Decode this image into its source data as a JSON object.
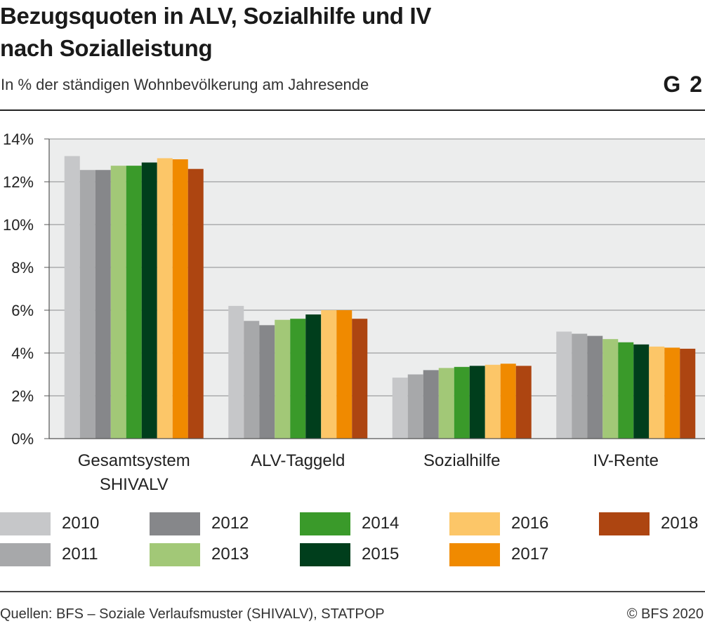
{
  "header": {
    "title": "Bezugsquoten in ALV, Sozialhilfe und IV nach Sozialleistung",
    "subtitle": "In % der ständigen Wohnbevölkerung am Jahresende",
    "code": "G 2"
  },
  "footer": {
    "source": "Quellen: BFS – Soziale Verlaufsmuster (SHIVALV), STATPOP",
    "copyright": "© BFS 2020"
  },
  "chart_data": {
    "type": "bar",
    "title": "Bezugsquoten in ALV, Sozialhilfe und IV nach Sozialleistung",
    "subtitle": "In % der ständigen Wohnbevölkerung am Jahresende",
    "categories": [
      [
        "Gesamtsystem",
        "SHIVALV"
      ],
      [
        "ALV-Taggeld"
      ],
      [
        "Sozialhilfe"
      ],
      [
        "IV-Rente"
      ]
    ],
    "ylim": [
      0,
      14
    ],
    "yticks": [
      0,
      2,
      4,
      6,
      8,
      10,
      12,
      14
    ],
    "ytick_labels": [
      "0%",
      "2%",
      "4%",
      "6%",
      "8%",
      "10%",
      "12%",
      "14%"
    ],
    "grid": true,
    "legend_position": "bottom",
    "series": [
      {
        "name": "2010",
        "color": "#c6c7c9",
        "values": [
          13.2,
          6.2,
          2.85,
          5.0
        ]
      },
      {
        "name": "2011",
        "color": "#a7a8aa",
        "values": [
          12.55,
          5.5,
          3.0,
          4.9
        ]
      },
      {
        "name": "2012",
        "color": "#86878a",
        "values": [
          12.55,
          5.3,
          3.2,
          4.8
        ]
      },
      {
        "name": "2013",
        "color": "#a2c877",
        "values": [
          12.75,
          5.55,
          3.3,
          4.65
        ]
      },
      {
        "name": "2014",
        "color": "#3a9a2a",
        "values": [
          12.75,
          5.6,
          3.35,
          4.5
        ]
      },
      {
        "name": "2015",
        "color": "#003e1c",
        "values": [
          12.9,
          5.8,
          3.4,
          4.4
        ]
      },
      {
        "name": "2016",
        "color": "#fcc668",
        "values": [
          13.1,
          6.0,
          3.45,
          4.3
        ]
      },
      {
        "name": "2017",
        "color": "#f08a00",
        "values": [
          13.05,
          6.0,
          3.5,
          4.25
        ]
      },
      {
        "name": "2018",
        "color": "#ad4511",
        "values": [
          12.6,
          5.6,
          3.4,
          4.2
        ]
      }
    ]
  }
}
